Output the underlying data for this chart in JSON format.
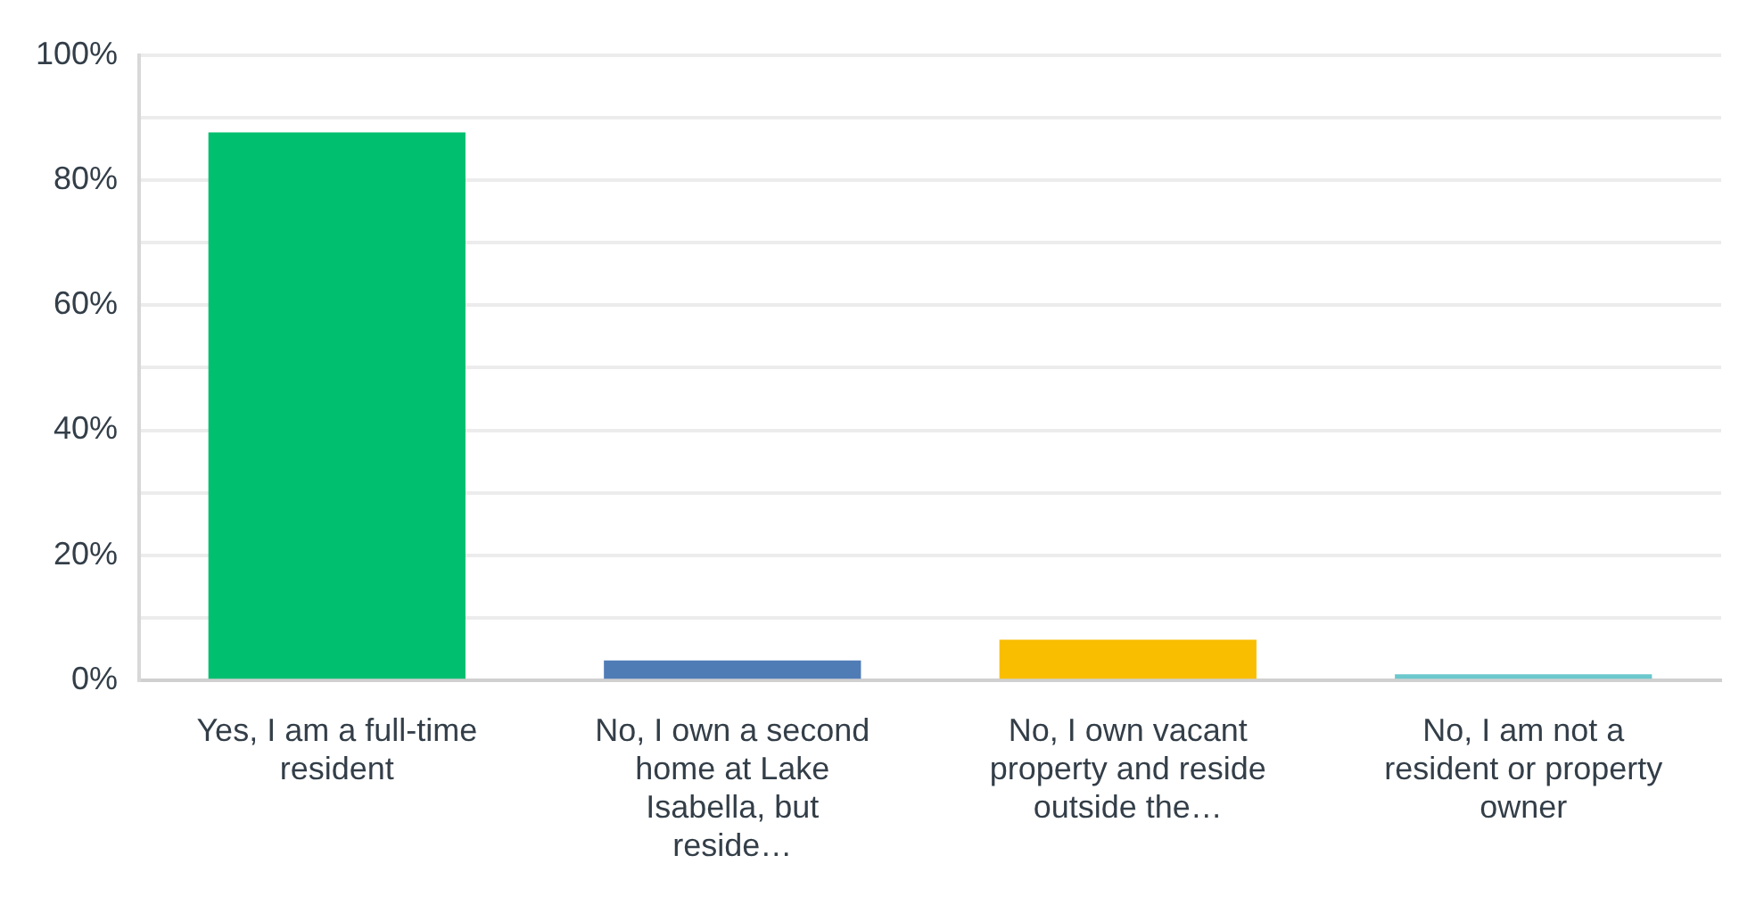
{
  "chart_data": {
    "type": "bar",
    "categories": [
      "Yes, I am a full-time resident",
      "No, I own a second home at Lake Isabella, but reside…",
      "No, I own vacant property and reside outside the…",
      "No, I am not a resident or property owner"
    ],
    "values": [
      87.6,
      3.2,
      6.5,
      1.0
    ],
    "colors": [
      "#00bf6f",
      "#507cb6",
      "#f9be00",
      "#6bc8cd"
    ],
    "ylim": [
      0,
      100
    ],
    "yticks": [
      {
        "value": 0,
        "label": "0%"
      },
      {
        "value": 10,
        "label": null
      },
      {
        "value": 20,
        "label": "20%"
      },
      {
        "value": 30,
        "label": null
      },
      {
        "value": 40,
        "label": "40%"
      },
      {
        "value": 50,
        "label": null
      },
      {
        "value": 60,
        "label": "60%"
      },
      {
        "value": 70,
        "label": null
      },
      {
        "value": 80,
        "label": "80%"
      },
      {
        "value": 90,
        "label": null
      },
      {
        "value": 100,
        "label": "100%"
      }
    ],
    "grid": "y",
    "legend": false
  }
}
